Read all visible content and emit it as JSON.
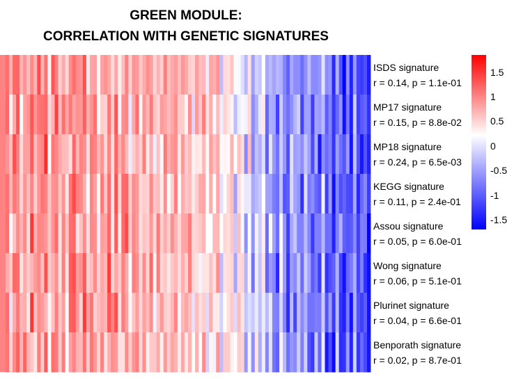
{
  "title_line1": "GREEN MODULE:",
  "title_line2": "CORRELATION WITH GENETIC SIGNATURES",
  "colors": {
    "high": "#ff0000",
    "mid": "#ffffff",
    "low": "#0000ff"
  },
  "chart_data": {
    "type": "heatmap",
    "title": "GREEN MODULE:\nCORRELATION WITH GENETIC SIGNATURES",
    "n_columns": 104,
    "value_range": [
      -1.7,
      1.85
    ],
    "rows": [
      {
        "name": "ISDS signature",
        "stats": "r = 0.14, p = 1.1e-01"
      },
      {
        "name": "MP17 signature",
        "stats": "r = 0.15, p = 8.8e-02"
      },
      {
        "name": "MP18 signature",
        "stats": "r = 0.24, p = 6.5e-03"
      },
      {
        "name": "KEGG signature",
        "stats": "r = 0.11, p = 2.4e-01"
      },
      {
        "name": "Assou signature",
        "stats": "r = 0.05, p = 6.0e-01"
      },
      {
        "name": "Wong signature",
        "stats": "r = 0.06, p = 5.1e-01"
      },
      {
        "name": "Plurinet signature",
        "stats": "r = 0.04, p = 6.6e-01"
      },
      {
        "name": "Benporath signature",
        "stats": "r = 0.02, p = 8.7e-01"
      }
    ],
    "column_trend": [
      1.1,
      0.2,
      0.9,
      1.0,
      0.3,
      0.8,
      0.6,
      1.0,
      0.4,
      0.9,
      0.7,
      1.0,
      0.2,
      0.8,
      1.0,
      0.5,
      0.9,
      0.3,
      0.7,
      1.1,
      0.6,
      0.8,
      1.0,
      0.4,
      0.9,
      0.7,
      0.2,
      0.8,
      0.5,
      1.0,
      0.6,
      0.9,
      0.3,
      0.7,
      0.8,
      0.1,
      0.6,
      0.9,
      0.4,
      0.7,
      0.5,
      0.8,
      0.2,
      0.6,
      0.4,
      0.7,
      0.3,
      0.5,
      0.8,
      0.2,
      0.6,
      0.4,
      0.7,
      0.1,
      0.5,
      0.3,
      0.6,
      0.0,
      0.4,
      0.2,
      0.5,
      -0.1,
      0.3,
      0.1,
      0.4,
      -0.3,
      0.2,
      0.0,
      -0.4,
      0.1,
      -0.6,
      -0.2,
      -0.5,
      -0.1,
      -0.8,
      -0.3,
      -0.6,
      -0.9,
      -0.2,
      -0.7,
      -1.0,
      -0.4,
      -0.8,
      -0.6,
      -1.1,
      -0.5,
      -0.9,
      -1.2,
      -0.7,
      -1.0,
      -0.4,
      -1.1,
      -0.8,
      -1.3,
      -0.6,
      -1.0,
      -1.2,
      -0.9,
      -1.4,
      -0.7,
      -1.1,
      -1.3,
      -1.0,
      -1.5
    ],
    "legend": {
      "ticks": [
        1.5,
        1,
        0.5,
        0,
        -0.5,
        -1,
        -1.5
      ],
      "tick_labels": [
        "1.5",
        "1",
        "0.5",
        "0",
        "-0.5",
        "-1",
        "-1.5"
      ],
      "min": -1.7,
      "max": 1.85,
      "position": "right"
    }
  }
}
